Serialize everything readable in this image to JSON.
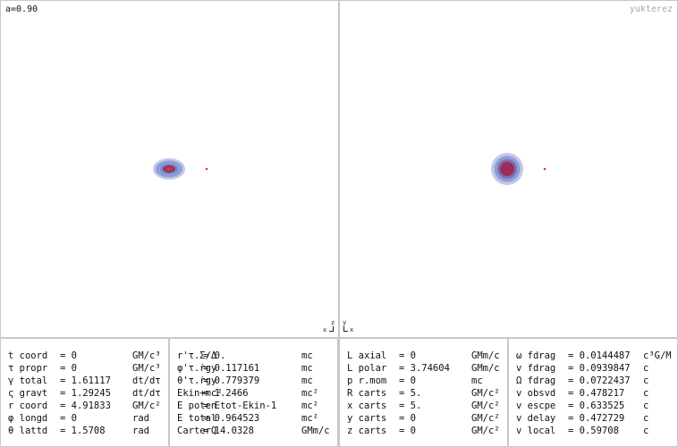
{
  "header": {
    "spin": "a=0.90",
    "brand": "yukterez"
  },
  "views": {
    "left": {
      "axis_top": "z",
      "axis_side": "x"
    },
    "right": {
      "axis_top": "y",
      "axis_side": "x"
    }
  },
  "colors": {
    "accent_red": "#d04020",
    "ring_outer": "#b8bde6",
    "ring_mid": "#7f95d1",
    "core": "#9c2f58"
  },
  "panels": [
    [
      {
        "label": "t coord",
        "value": "= 0",
        "unit": "GM/c³"
      },
      {
        "label": "τ propr",
        "value": "= 0",
        "unit": "GM/c³"
      },
      {
        "label": "γ total",
        "value": "= 1.61117",
        "unit": "dt/dτ"
      },
      {
        "label": "ς gravt",
        "value": "= 1.29245",
        "unit": "dt/dτ"
      },
      {
        "label": "r coord",
        "value": "= 4.91833",
        "unit": "GM/c²"
      },
      {
        "label": "φ longd",
        "value": "= 0",
        "unit": "rad"
      },
      {
        "label": "θ lattd",
        "value": "= 1.5708",
        "unit": "rad"
      }
    ],
    [
      {
        "label": "r'τ.Σ/Δ",
        "value": "= 0.",
        "unit": "mc"
      },
      {
        "label": "φ'τ.ṙgy",
        "value": "= 0.117161",
        "unit": "mc"
      },
      {
        "label": "θ'τ.ṙgy",
        "value": "= 0.779379",
        "unit": "mc"
      },
      {
        "label": "Ekin+mc²",
        "value": "= 1.2466",
        "unit": "mc²"
      },
      {
        "label": "E poten",
        "value": "= Etot-Ekin-1",
        "unit": "mc²"
      },
      {
        "label": "E total",
        "value": "= 0.964523",
        "unit": "mc²"
      },
      {
        "label": "CarterQ",
        "value": "= 14.0328",
        "unit": "GMm/c"
      }
    ],
    [
      {
        "label": "L axial",
        "value": "= 0",
        "unit": "GMm/c"
      },
      {
        "label": "L polar",
        "value": "= 3.74604",
        "unit": "GMm/c"
      },
      {
        "label": "p r.mom",
        "value": "= 0",
        "unit": "mc"
      },
      {
        "label": "R carts",
        "value": "= 5.",
        "unit": "GM/c²"
      },
      {
        "label": "x carts",
        "value": "= 5.",
        "unit": "GM/c²"
      },
      {
        "label": "y carts",
        "value": "= 0",
        "unit": "GM/c²"
      },
      {
        "label": "z carts",
        "value": "= 0",
        "unit": "GM/c²"
      }
    ],
    [
      {
        "label": "ω fdrag",
        "value": "= 0.0144487",
        "unit": "c³G/M"
      },
      {
        "label": "v fdrag",
        "value": "= 0.0939847",
        "unit": "c"
      },
      {
        "label": "Ω fdrag",
        "value": "= 0.0722437",
        "unit": "c"
      },
      {
        "label": "v obsvd",
        "value": "= 0.478217",
        "unit": "c"
      },
      {
        "label": "v escpe",
        "value": "= 0.633525",
        "unit": "c"
      },
      {
        "label": "v delay",
        "value": "= 0.472729",
        "unit": "c"
      },
      {
        "label": "v local",
        "value": "= 0.59708",
        "unit": "c"
      }
    ]
  ]
}
